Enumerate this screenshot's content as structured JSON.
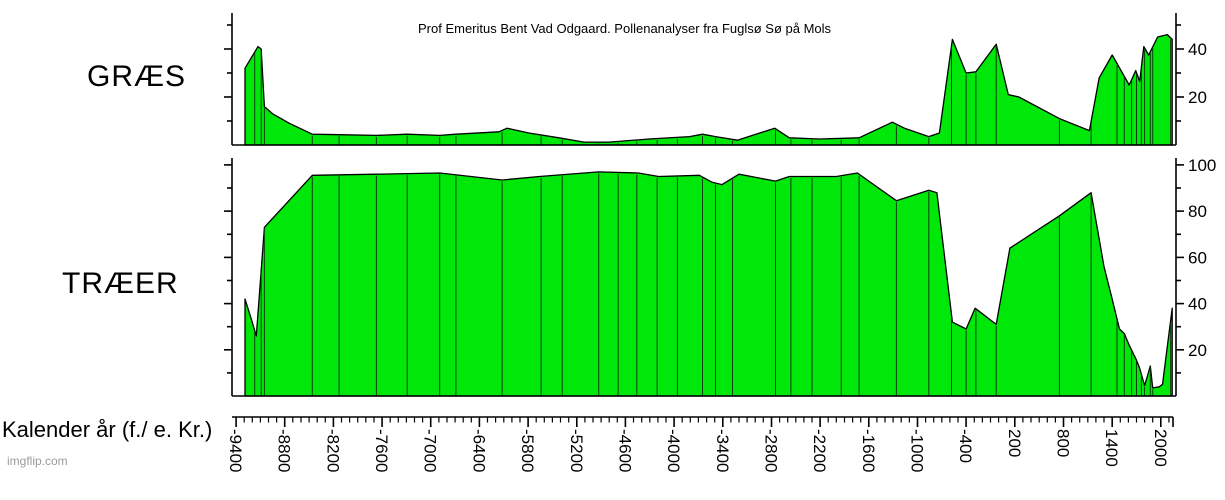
{
  "title": "Prof Emeritus Bent Vad Odgaard. Pollenanalyser fra Fuglsø Sø på Mols",
  "watermark": "imgflip.com",
  "x_axis": {
    "title": "Kalender år (f./ e. Kr.)",
    "range": [
      -9450,
      2150
    ],
    "minor_tick_step": 100,
    "tick_labels": [
      "-9400",
      "-8800",
      "-8200",
      "-7600",
      "-7000",
      "-6400",
      "-5800",
      "-5200",
      "-4600",
      "-4000",
      "-3400",
      "-2800",
      "-2200",
      "-1600",
      "-1000",
      "-400",
      "200",
      "800",
      "1400",
      "2000"
    ]
  },
  "colors": {
    "area_fill": "#00e80a",
    "outline": "#000000",
    "divider": "#0b3d0b",
    "axis": "#000000"
  },
  "chart_data": [
    {
      "type": "area",
      "name": "GRÆS",
      "ylabel_side": "right",
      "ylim": [
        0,
        55
      ],
      "ytick_minor": 10,
      "ytick_labels": [
        20,
        40
      ],
      "grid": false,
      "x": [
        -9290,
        -9130,
        -9090,
        -9050,
        -8950,
        -8740,
        -8460,
        -8130,
        -7670,
        -7290,
        -6890,
        -6690,
        -6160,
        -6060,
        -5790,
        -5420,
        -5110,
        -4800,
        -4310,
        -3810,
        -3650,
        -3490,
        -3220,
        -2760,
        -2580,
        -2210,
        -1720,
        -1310,
        -1160,
        -860,
        -730,
        -570,
        -400,
        -280,
        -30,
        120,
        250,
        750,
        1120,
        1240,
        1400,
        1610,
        1690,
        1740,
        1790,
        1850,
        1960,
        2080,
        2140
      ],
      "values": [
        32,
        41,
        40,
        16,
        13,
        9,
        4.5,
        4.3,
        4,
        4.5,
        4,
        4.5,
        5.5,
        7,
        5,
        3,
        1.2,
        1.2,
        2.5,
        3.5,
        4.5,
        3.5,
        2,
        7,
        3,
        2.5,
        3,
        9.5,
        7,
        3.5,
        5,
        44,
        30,
        30.5,
        42,
        21,
        20,
        11,
        6,
        28,
        37.5,
        25,
        31,
        26.5,
        41,
        37.5,
        45,
        46,
        44
      ]
    },
    {
      "type": "area",
      "name": "TRÆER",
      "ylabel_side": "right",
      "ylim": [
        0,
        103
      ],
      "ytick_minor": 10,
      "ytick_labels": [
        20,
        40,
        60,
        80,
        100
      ],
      "grid": false,
      "x": [
        -9290,
        -9210,
        -9150,
        -9050,
        -8460,
        -7670,
        -6890,
        -6120,
        -5660,
        -4930,
        -4440,
        -4190,
        -3690,
        -3530,
        -3410,
        -3200,
        -2750,
        -2580,
        -2000,
        -1740,
        -1260,
        -860,
        -760,
        -570,
        -400,
        -290,
        -30,
        140,
        750,
        1140,
        1300,
        1390,
        1490,
        1550,
        1610,
        1700,
        1740,
        1800,
        1870,
        1900,
        1980,
        2020,
        2140
      ],
      "values": [
        42,
        33,
        26,
        73,
        95.5,
        96,
        96.5,
        93.5,
        95,
        97,
        96.5,
        95,
        95.5,
        92.5,
        91.5,
        96,
        93,
        95,
        95,
        96.5,
        84.5,
        89,
        88,
        32,
        29,
        38,
        31,
        64,
        78,
        88,
        56,
        43.5,
        29,
        27,
        22,
        15.5,
        12,
        4.5,
        13,
        3.5,
        4,
        5,
        38
      ]
    }
  ],
  "sample_dividers": [
    -9170,
    -9090,
    -9050,
    -8460,
    -8130,
    -7670,
    -7290,
    -6890,
    -6690,
    -6120,
    -5640,
    -5380,
    -4930,
    -4690,
    -4460,
    -4210,
    -3960,
    -3650,
    -3490,
    -3280,
    -2750,
    -2560,
    -2300,
    -1940,
    -1720,
    -1260,
    -860,
    -580,
    -400,
    -280,
    -30,
    750,
    1140,
    1460,
    1550,
    1640,
    1700,
    1760,
    1800,
    1870,
    1900,
    2120
  ]
}
